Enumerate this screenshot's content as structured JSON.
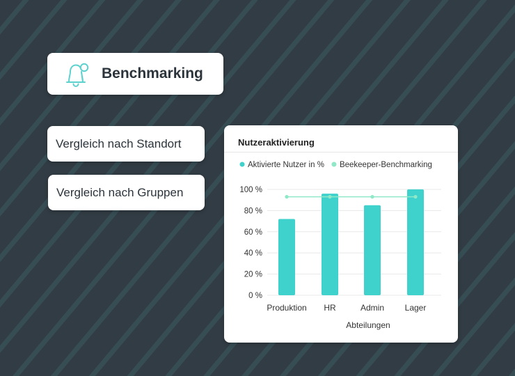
{
  "benchmark_card": {
    "title": "Benchmarking",
    "icon": "bell-icon",
    "icon_color": "#5cd1cd"
  },
  "menu": {
    "compare_location": "Vergleich nach Standort",
    "compare_groups": "Vergleich nach Gruppen"
  },
  "chart_panel": {
    "title": "Nutzeraktivierung"
  },
  "chart_data": {
    "type": "bar",
    "categories": [
      "Produktion",
      "HR",
      "Admin",
      "Lager"
    ],
    "series": [
      {
        "name": "Aktivierte Nutzer in %",
        "type": "bar",
        "color": "#3fd1cc",
        "values": [
          72,
          96,
          85,
          100
        ]
      },
      {
        "name": "Beekeeper-Benchmarking",
        "type": "line",
        "color": "#8fe8c7",
        "values": [
          93,
          93,
          93,
          93
        ]
      }
    ],
    "xlabel": "Abteilungen",
    "ylabel": "",
    "ylim": [
      0,
      100
    ],
    "yticks": [
      "0 %",
      "20 %",
      "40 %",
      "60 %",
      "80 %",
      "100 %"
    ],
    "grid": true,
    "legend": "top"
  }
}
